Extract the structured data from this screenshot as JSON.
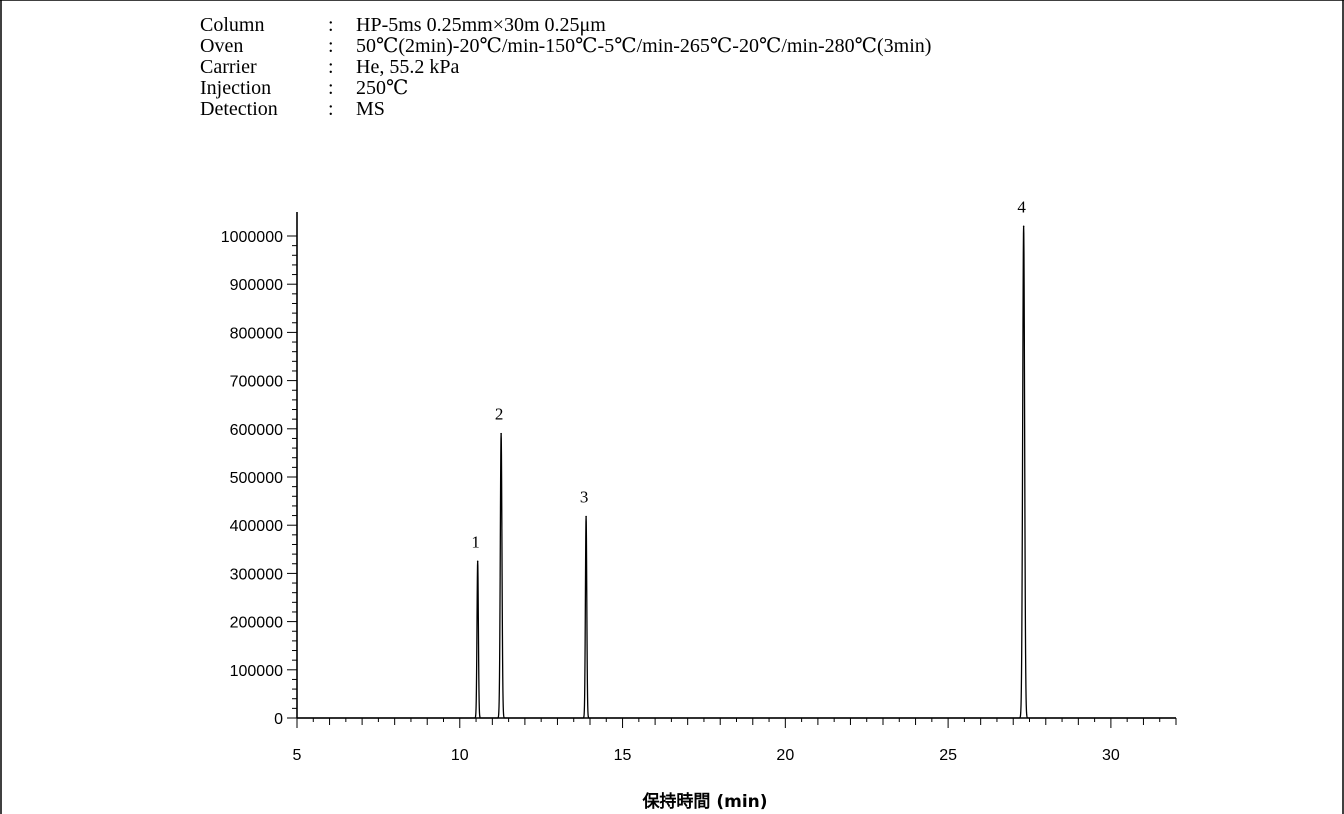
{
  "conditions": [
    {
      "label": "Column",
      "sep": ":",
      "value": "HP-5ms 0.25mm×30m 0.25μm"
    },
    {
      "label": "Oven",
      "sep": ":",
      "value": "50℃(2min)-20℃/min-150℃-5℃/min-265℃-20℃/min-280℃(3min)"
    },
    {
      "label": "Carrier",
      "sep": ":",
      "value": "He, 55.2 kPa"
    },
    {
      "label": "Injection",
      "sep": ":",
      "value": "250℃"
    },
    {
      "label": "Detection",
      "sep": ":",
      "value": "MS"
    }
  ],
  "chart_data": {
    "type": "line",
    "title": "",
    "xlabel": "保持時間 (min)",
    "ylabel": "",
    "xlim": [
      5,
      32
    ],
    "ylim": [
      0,
      1000000
    ],
    "xticks": [
      5,
      10,
      15,
      20,
      25,
      30
    ],
    "yticks": [
      0,
      100000,
      200000,
      300000,
      400000,
      500000,
      600000,
      700000,
      800000,
      900000,
      1000000
    ],
    "grid": false,
    "peaks": [
      {
        "label": "1",
        "rt": 10.55,
        "height": 325000,
        "width": 0.05
      },
      {
        "label": "2",
        "rt": 11.27,
        "height": 590000,
        "width": 0.06
      },
      {
        "label": "3",
        "rt": 13.88,
        "height": 418000,
        "width": 0.05
      },
      {
        "label": "4",
        "rt": 27.32,
        "height": 1020000,
        "width": 0.07
      }
    ],
    "colors": {
      "trace": "#000000",
      "axis": "#000000"
    }
  }
}
